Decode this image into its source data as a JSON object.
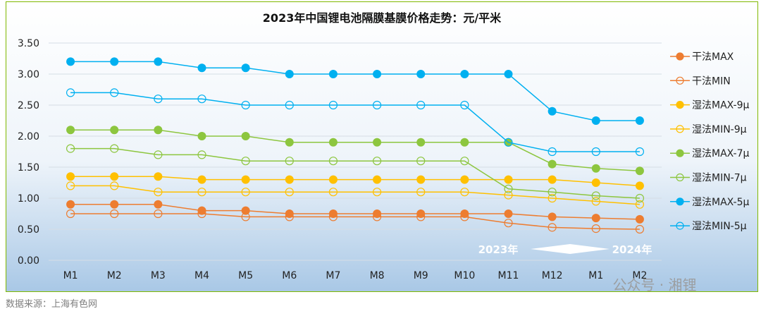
{
  "chart_data": {
    "type": "line",
    "title": "2023年中国锂电池隔膜基膜价格走势：元/平米",
    "categories": [
      "M1",
      "M2",
      "M3",
      "M4",
      "M5",
      "M6",
      "M7",
      "M8",
      "M9",
      "M10",
      "M11",
      "M12",
      "M1",
      "M2"
    ],
    "ylim": [
      0,
      3.5
    ],
    "yticks": [
      "0.00",
      "0.50",
      "1.00",
      "1.50",
      "2.00",
      "2.50",
      "3.00",
      "3.50"
    ],
    "grid": true,
    "legend_position": "right",
    "series": [
      {
        "name": "干法MAX",
        "marker": "filled",
        "color": "#ed7d31",
        "values": [
          0.9,
          0.9,
          0.9,
          0.8,
          0.8,
          0.75,
          0.75,
          0.75,
          0.75,
          0.75,
          0.75,
          0.7,
          0.68,
          0.66
        ]
      },
      {
        "name": "干法MIN",
        "marker": "hollow",
        "color": "#ed7d31",
        "values": [
          0.75,
          0.75,
          0.75,
          0.75,
          0.7,
          0.7,
          0.7,
          0.7,
          0.7,
          0.7,
          0.6,
          0.53,
          0.51,
          0.5
        ]
      },
      {
        "name": "湿法MAX-9μ",
        "marker": "filled",
        "color": "#ffc000",
        "values": [
          1.35,
          1.35,
          1.35,
          1.3,
          1.3,
          1.3,
          1.3,
          1.3,
          1.3,
          1.3,
          1.3,
          1.3,
          1.25,
          1.2
        ]
      },
      {
        "name": "湿法MIN-9μ",
        "marker": "hollow",
        "color": "#ffc000",
        "values": [
          1.2,
          1.2,
          1.1,
          1.1,
          1.1,
          1.1,
          1.1,
          1.1,
          1.1,
          1.1,
          1.05,
          1.0,
          0.95,
          0.9
        ]
      },
      {
        "name": "湿法MAX-7μ",
        "marker": "filled",
        "color": "#8dc63f",
        "values": [
          2.1,
          2.1,
          2.1,
          2.0,
          2.0,
          1.9,
          1.9,
          1.9,
          1.9,
          1.9,
          1.9,
          1.55,
          1.48,
          1.44
        ]
      },
      {
        "name": "湿法MIN-7μ",
        "marker": "hollow",
        "color": "#8dc63f",
        "values": [
          1.8,
          1.8,
          1.7,
          1.7,
          1.6,
          1.6,
          1.6,
          1.6,
          1.6,
          1.6,
          1.15,
          1.1,
          1.04,
          1.0
        ]
      },
      {
        "name": "湿法MAX-5μ",
        "marker": "filled",
        "color": "#00b0f0",
        "values": [
          3.2,
          3.2,
          3.2,
          3.1,
          3.1,
          3.0,
          3.0,
          3.0,
          3.0,
          3.0,
          3.0,
          2.4,
          2.25,
          2.25
        ]
      },
      {
        "name": "湿法MIN-5μ",
        "marker": "hollow",
        "color": "#00b0f0",
        "values": [
          2.7,
          2.7,
          2.6,
          2.6,
          2.5,
          2.5,
          2.5,
          2.5,
          2.5,
          2.5,
          1.9,
          1.75,
          1.75,
          1.75
        ]
      }
    ],
    "annotations": {
      "year_start": "2023年",
      "year_end": "2024年"
    }
  },
  "watermark": "公众号 · 湘锂",
  "source_note": "数据来源：上海有色网"
}
